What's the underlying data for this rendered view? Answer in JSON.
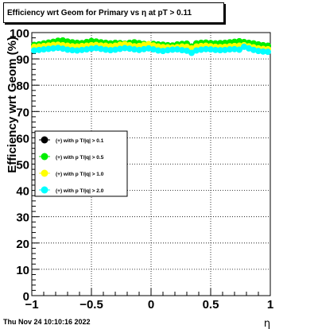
{
  "title": "Efficiency wrt Geom for Primary vs   η at pT > 0.11",
  "timestamp": "Thu Nov 24 10:10:16 2022",
  "chart_data": {
    "type": "scatter",
    "xlabel": "η",
    "ylabel": "Efficiency wrt Geom (%)",
    "xlim": [
      -1,
      1
    ],
    "ylim": [
      0,
      100
    ],
    "x_ticks": [
      -1,
      -0.5,
      0,
      0.5,
      1
    ],
    "x_tick_labels": [
      "−1",
      "−0.5",
      "0",
      "0.5",
      "1"
    ],
    "y_ticks": [
      0,
      10,
      20,
      30,
      40,
      50,
      60,
      70,
      80,
      90,
      100
    ],
    "grid": true,
    "legend_position": "left-middle",
    "x": [
      -0.98,
      -0.94,
      -0.9,
      -0.86,
      -0.82,
      -0.78,
      -0.74,
      -0.7,
      -0.66,
      -0.62,
      -0.58,
      -0.54,
      -0.5,
      -0.46,
      -0.42,
      -0.38,
      -0.34,
      -0.3,
      -0.26,
      -0.22,
      -0.18,
      -0.14,
      -0.1,
      -0.06,
      -0.02,
      0.02,
      0.06,
      0.1,
      0.14,
      0.18,
      0.22,
      0.26,
      0.3,
      0.34,
      0.38,
      0.42,
      0.46,
      0.5,
      0.54,
      0.58,
      0.62,
      0.66,
      0.7,
      0.74,
      0.78,
      0.82,
      0.86,
      0.9,
      0.94,
      0.98
    ],
    "series": [
      {
        "name": "(+) with p T/|q| > 0.1",
        "color": "#000000",
        "values": [
          95.2,
          95.4,
          95.8,
          96.1,
          96.4,
          96.8,
          96.9,
          96.5,
          96.2,
          96.0,
          95.9,
          96.3,
          96.7,
          96.5,
          96.2,
          96.0,
          95.8,
          96.0,
          95.9,
          95.7,
          96.0,
          96.2,
          95.9,
          95.6,
          95.5,
          95.6,
          95.4,
          95.3,
          95.1,
          95.0,
          95.4,
          95.6,
          95.7,
          94.6,
          95.8,
          96.0,
          96.1,
          95.9,
          95.8,
          95.9,
          96.0,
          96.2,
          96.4,
          96.6,
          96.3,
          96.0,
          95.8,
          95.4,
          95.1,
          94.9
        ]
      },
      {
        "name": "(+) with p T/|q| > 0.5",
        "color": "#00ee00",
        "values": [
          95.3,
          95.5,
          95.9,
          96.2,
          96.5,
          96.9,
          97.0,
          96.6,
          96.3,
          96.1,
          96.0,
          96.4,
          96.8,
          96.6,
          96.3,
          96.1,
          95.9,
          96.1,
          96.0,
          95.8,
          96.1,
          96.3,
          96.0,
          95.7,
          95.6,
          95.7,
          95.5,
          95.4,
          95.2,
          95.1,
          95.5,
          95.7,
          95.8,
          94.7,
          95.9,
          96.1,
          96.2,
          96.0,
          95.9,
          96.0,
          96.1,
          96.3,
          96.5,
          96.7,
          96.4,
          96.1,
          95.9,
          95.5,
          95.2,
          95.0
        ]
      },
      {
        "name": "(+) with p T/|q| > 1.0",
        "color": "#ffff00",
        "values": [
          94.6,
          94.7,
          94.9,
          95.1,
          95.3,
          95.4,
          95.2,
          95.0,
          94.8,
          94.7,
          94.9,
          95.0,
          95.2,
          95.3,
          95.1,
          95.0,
          94.8,
          95.0,
          95.4,
          95.6,
          95.2,
          94.8,
          94.9,
          95.3,
          95.6,
          95.1,
          94.7,
          94.5,
          94.4,
          94.3,
          94.5,
          94.7,
          94.6,
          94.0,
          94.7,
          94.9,
          95.0,
          94.8,
          94.6,
          94.5,
          94.6,
          94.8,
          94.9,
          95.0,
          95.2,
          94.8,
          94.4,
          94.0,
          93.8,
          93.7
        ]
      },
      {
        "name": "(+) with p T/|q| > 2.0",
        "color": "#00ffff",
        "values": [
          93.2,
          93.4,
          93.6,
          93.8,
          94.0,
          94.2,
          93.9,
          93.5,
          93.3,
          93.2,
          93.4,
          93.6,
          93.9,
          94.1,
          93.8,
          93.5,
          93.3,
          93.5,
          93.8,
          94.1,
          93.9,
          93.6,
          93.4,
          93.7,
          94.0,
          93.6,
          93.2,
          93.0,
          93.3,
          93.5,
          93.6,
          93.3,
          93.1,
          92.3,
          93.2,
          93.5,
          93.7,
          93.6,
          93.4,
          93.3,
          93.4,
          93.6,
          93.7,
          93.5,
          94.6,
          94.0,
          93.4,
          93.0,
          92.8,
          92.7
        ]
      }
    ]
  }
}
